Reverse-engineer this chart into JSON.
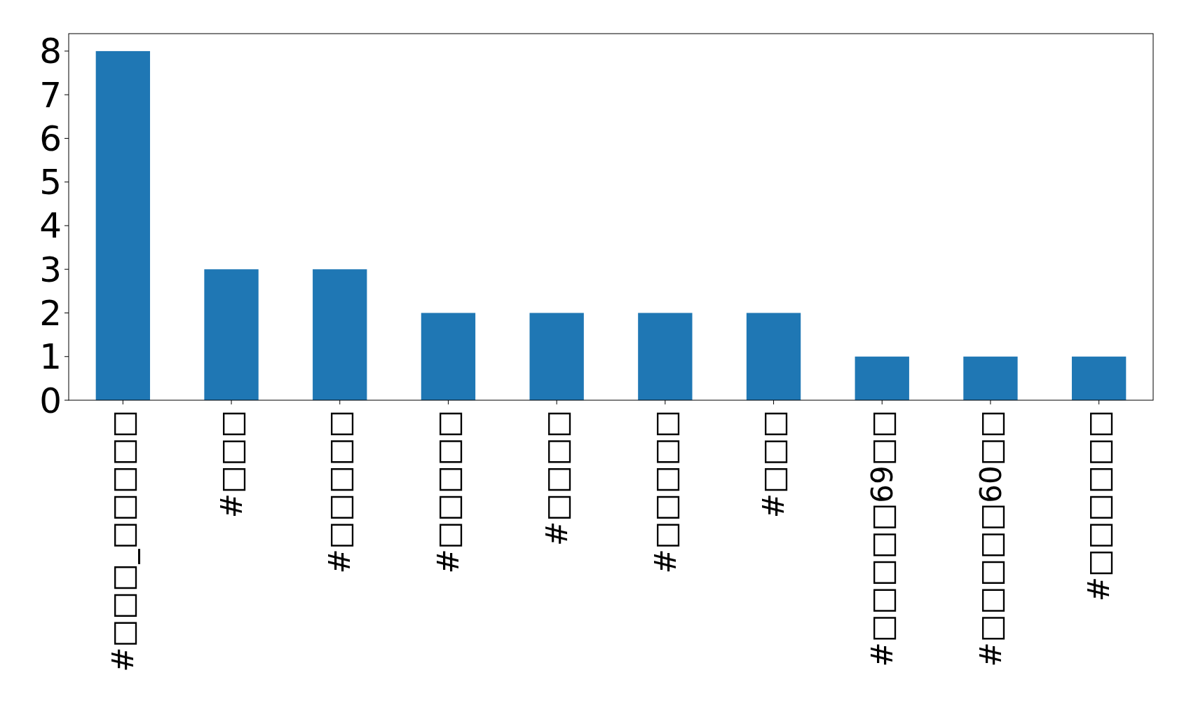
{
  "chart_data": {
    "type": "bar",
    "categories": [
      "#□□□_□□□□□",
      "#□□□",
      "#□□□□□",
      "#□□□□□",
      "#□□□□",
      "#□□□□□",
      "#□□□",
      "#□□□□□69□□",
      "#□□□□□60□□",
      "#□□□□□□"
    ],
    "values": [
      8,
      3,
      3,
      2,
      2,
      2,
      2,
      1,
      1,
      1
    ],
    "color": "#1f77b4",
    "ylim": [
      0,
      8.4
    ],
    "yticks": [
      0,
      1,
      2,
      3,
      4,
      5,
      6,
      7,
      8
    ],
    "grid": false
  }
}
